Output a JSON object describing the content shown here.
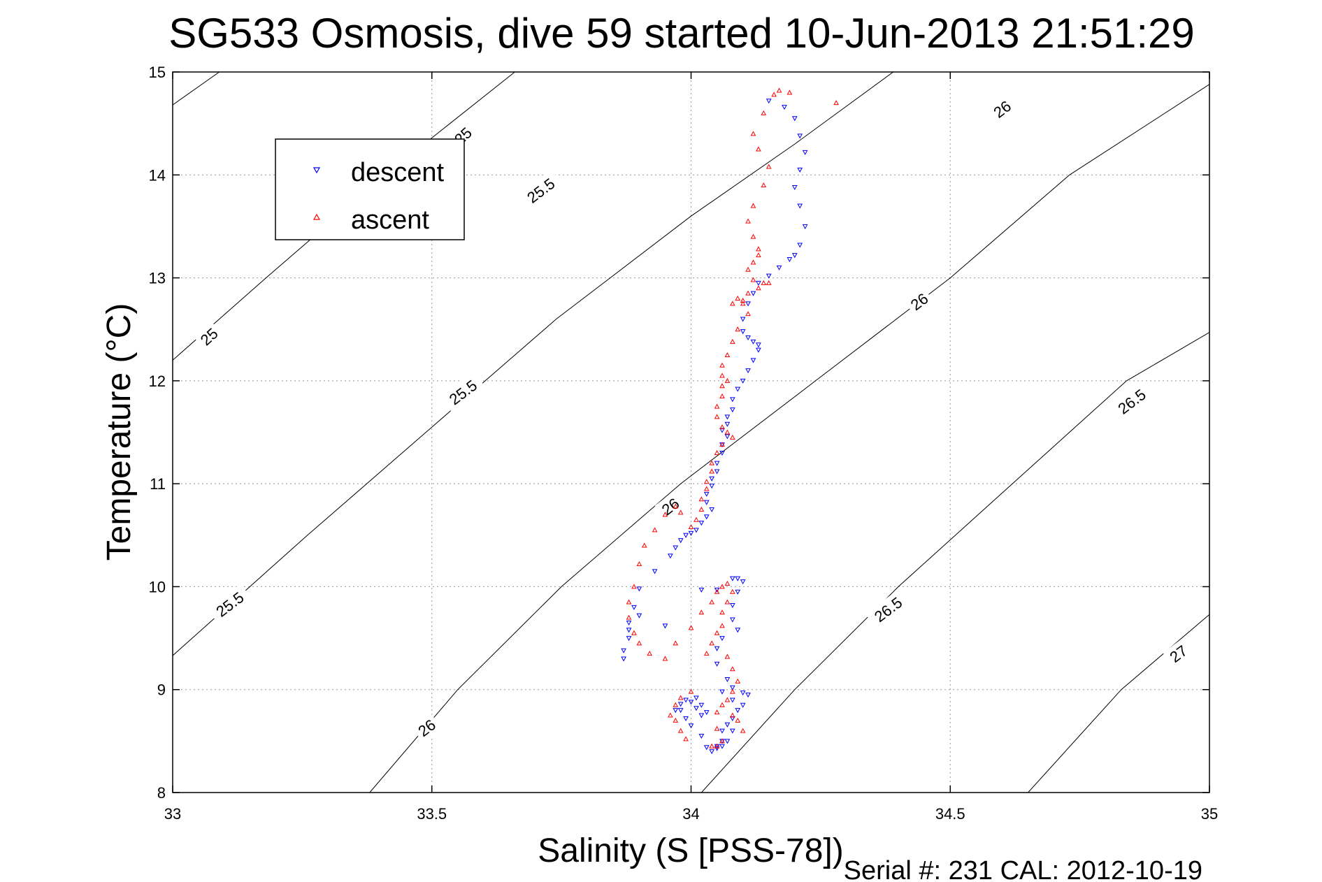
{
  "chart_data": {
    "type": "scatter",
    "title": "SG533 Osmosis, dive 59 started 10-Jun-2013 21:51:29",
    "xlabel": "Salinity (S [PSS-78])",
    "ylabel": "Temperature (°C)",
    "xlim": [
      33,
      35
    ],
    "ylim": [
      8,
      15
    ],
    "xticks": [
      33,
      33.5,
      34,
      34.5,
      35
    ],
    "xtick_labels": [
      "33",
      "33.5",
      "34",
      "34.5",
      "35"
    ],
    "yticks": [
      8,
      9,
      10,
      11,
      12,
      13,
      14,
      15
    ],
    "ytick_labels": [
      "8",
      "9",
      "10",
      "11",
      "12",
      "13",
      "14",
      "15"
    ],
    "grid": true,
    "legend_position": "top-left",
    "footer": "Serial #: 231  CAL: 2012-10-19",
    "density_contours": [
      {
        "sigma": 25,
        "label": "25",
        "points": [
          [
            33.0,
            14.68
          ],
          [
            33.09,
            15.0
          ]
        ]
      },
      {
        "sigma": 25,
        "label": "25",
        "points": [
          [
            33.0,
            12.2
          ],
          [
            33.18,
            13.0
          ],
          [
            33.41,
            14.0
          ],
          [
            33.66,
            15.0
          ]
        ]
      },
      {
        "sigma": 25.5,
        "label": "25.5",
        "points": [
          [
            33.0,
            9.33
          ],
          [
            33.26,
            10.5
          ],
          [
            33.5,
            11.55
          ],
          [
            33.74,
            12.6
          ],
          [
            34.0,
            13.6
          ],
          [
            34.2,
            14.3
          ],
          [
            34.39,
            15.0
          ]
        ]
      },
      {
        "sigma": 26,
        "label": "26",
        "points": [
          [
            33.38,
            8.0
          ],
          [
            33.55,
            9.0
          ],
          [
            33.75,
            10.0
          ],
          [
            33.98,
            11.0
          ],
          [
            34.24,
            12.0
          ],
          [
            34.5,
            13.0
          ],
          [
            34.73,
            14.0
          ],
          [
            35.0,
            14.88
          ]
        ]
      },
      {
        "sigma": 26.5,
        "label": "26.5",
        "points": [
          [
            34.02,
            8.0
          ],
          [
            34.2,
            9.0
          ],
          [
            34.4,
            10.0
          ],
          [
            34.62,
            11.0
          ],
          [
            34.84,
            12.0
          ],
          [
            35.0,
            12.47
          ]
        ]
      },
      {
        "sigma": 27,
        "label": "27",
        "points": [
          [
            34.65,
            8.0
          ],
          [
            34.83,
            9.0
          ],
          [
            35.0,
            9.73
          ]
        ]
      }
    ],
    "contour_labels": [
      {
        "label": "25",
        "x": 33.56,
        "y": 14.38,
        "angle": -42
      },
      {
        "label": "25",
        "x": 33.07,
        "y": 12.43,
        "angle": -42
      },
      {
        "label": "25.5",
        "x": 33.71,
        "y": 13.85,
        "angle": -37
      },
      {
        "label": "25.5",
        "x": 33.56,
        "y": 11.89,
        "angle": -37
      },
      {
        "label": "25.5",
        "x": 33.11,
        "y": 9.83,
        "angle": -37
      },
      {
        "label": "26",
        "x": 34.6,
        "y": 14.64,
        "angle": -37
      },
      {
        "label": "26",
        "x": 34.44,
        "y": 12.77,
        "angle": -37
      },
      {
        "label": "26",
        "x": 33.96,
        "y": 10.78,
        "angle": -37
      },
      {
        "label": "26",
        "x": 33.49,
        "y": 8.63,
        "angle": -37
      },
      {
        "label": "26.5",
        "x": 34.85,
        "y": 11.8,
        "angle": -37
      },
      {
        "label": "26.5",
        "x": 34.38,
        "y": 9.78,
        "angle": -37
      },
      {
        "label": "27",
        "x": 34.94,
        "y": 9.35,
        "angle": -37
      }
    ],
    "series": [
      {
        "name": "descent",
        "color": "#0000ff",
        "marker": "triangle-down",
        "x": [
          34.15,
          34.18,
          34.2,
          34.21,
          34.22,
          34.21,
          34.2,
          34.21,
          34.22,
          34.21,
          34.2,
          34.19,
          34.17,
          34.15,
          34.13,
          34.12,
          34.11,
          34.1,
          34.1,
          34.11,
          34.12,
          34.13,
          34.13,
          34.12,
          34.11,
          34.1,
          34.09,
          34.08,
          34.08,
          34.07,
          34.07,
          34.06,
          34.07,
          34.06,
          34.06,
          34.05,
          34.05,
          34.04,
          34.04,
          34.03,
          34.03,
          34.04,
          34.03,
          34.02,
          34.01,
          34.0,
          33.99,
          33.98,
          33.97,
          33.96,
          33.93,
          33.9,
          33.89,
          33.88,
          33.88,
          33.87,
          33.87,
          33.88,
          33.9,
          33.95,
          34.02,
          34.05,
          34.08,
          34.09,
          34.1,
          34.09,
          34.08,
          34.08,
          34.09,
          34.06,
          34.05,
          34.05,
          34.07,
          34.06,
          34.08,
          34.08,
          34.1,
          34.11,
          34.1,
          34.09,
          34.08,
          34.07,
          34.06,
          34.06,
          34.05,
          34.04,
          34.03,
          34.02,
          34.0,
          33.99,
          33.98,
          34.0,
          34.01,
          34.02,
          34.03,
          34.02,
          34.01,
          33.99,
          33.98,
          33.97,
          34.05,
          34.06,
          34.07,
          34.08
        ],
        "y": [
          14.72,
          14.66,
          14.55,
          14.38,
          14.22,
          14.05,
          13.88,
          13.7,
          13.5,
          13.32,
          13.22,
          13.18,
          13.1,
          13.02,
          12.95,
          12.85,
          12.75,
          12.6,
          12.48,
          12.42,
          12.38,
          12.35,
          12.3,
          12.2,
          12.1,
          12.0,
          11.92,
          11.82,
          11.72,
          11.65,
          11.58,
          11.52,
          11.46,
          11.38,
          11.3,
          11.2,
          11.12,
          11.05,
          10.98,
          10.9,
          10.82,
          10.75,
          10.68,
          10.62,
          10.55,
          10.52,
          10.5,
          10.45,
          10.38,
          10.3,
          10.15,
          9.98,
          9.8,
          9.65,
          9.5,
          9.38,
          9.3,
          9.58,
          9.72,
          9.62,
          9.97,
          9.97,
          10.08,
          10.08,
          10.05,
          9.95,
          9.82,
          9.68,
          9.58,
          9.5,
          9.4,
          9.25,
          9.1,
          8.98,
          9.02,
          8.9,
          8.97,
          8.95,
          8.85,
          8.8,
          8.72,
          8.66,
          8.6,
          8.5,
          8.45,
          8.4,
          8.44,
          8.55,
          8.65,
          8.72,
          8.8,
          8.88,
          8.92,
          8.85,
          8.78,
          8.75,
          8.82,
          8.9,
          8.86,
          8.8,
          8.43,
          8.45,
          8.5,
          8.6
        ]
      },
      {
        "name": "ascent",
        "color": "#ff0000",
        "marker": "triangle-up",
        "x": [
          34.17,
          34.19,
          34.16,
          34.28,
          34.14,
          34.12,
          34.13,
          34.15,
          34.14,
          34.12,
          34.11,
          34.12,
          34.13,
          34.13,
          34.12,
          34.11,
          34.12,
          34.14,
          34.15,
          34.13,
          34.11,
          34.1,
          34.08,
          34.09,
          34.1,
          34.11,
          34.09,
          34.08,
          34.07,
          34.06,
          34.06,
          34.07,
          34.06,
          34.06,
          34.05,
          34.05,
          34.06,
          34.07,
          34.08,
          34.06,
          34.05,
          34.04,
          34.04,
          34.03,
          34.03,
          34.02,
          34.02,
          34.01,
          34.0,
          33.98,
          33.97,
          33.95,
          33.93,
          33.91,
          33.9,
          33.89,
          33.88,
          33.88,
          33.89,
          33.9,
          33.92,
          33.95,
          33.97,
          34.0,
          34.02,
          34.04,
          34.05,
          34.06,
          34.07,
          34.08,
          34.07,
          34.06,
          34.06,
          34.05,
          34.04,
          34.03,
          34.07,
          34.08,
          34.09,
          34.08,
          34.07,
          34.06,
          34.05,
          34.0,
          33.98,
          33.97,
          33.96,
          33.97,
          33.98,
          33.99,
          34.08,
          34.09,
          34.1,
          34.06,
          34.05,
          34.04,
          34.05
        ],
        "y": [
          14.82,
          14.8,
          14.78,
          14.7,
          14.6,
          14.4,
          14.25,
          14.08,
          13.9,
          13.7,
          13.55,
          13.4,
          13.28,
          13.22,
          13.15,
          13.08,
          12.98,
          12.95,
          12.95,
          12.9,
          12.85,
          12.78,
          12.75,
          12.8,
          12.75,
          12.65,
          12.5,
          12.38,
          12.25,
          12.15,
          12.05,
          12.0,
          11.95,
          11.85,
          11.75,
          11.65,
          11.55,
          11.5,
          11.45,
          11.38,
          11.3,
          11.2,
          11.12,
          11.02,
          10.95,
          10.85,
          10.75,
          10.65,
          10.58,
          10.72,
          10.78,
          10.7,
          10.55,
          10.4,
          10.22,
          10.0,
          9.85,
          9.7,
          9.55,
          9.45,
          9.35,
          9.3,
          9.45,
          9.6,
          9.75,
          9.85,
          9.95,
          10.0,
          10.03,
          9.95,
          9.85,
          9.75,
          9.62,
          9.55,
          9.45,
          9.35,
          9.32,
          9.2,
          9.08,
          8.98,
          8.9,
          8.85,
          8.78,
          8.98,
          8.92,
          8.85,
          8.75,
          8.7,
          8.6,
          8.52,
          8.75,
          8.7,
          8.6,
          8.5,
          8.45,
          8.45,
          8.62
        ]
      }
    ]
  }
}
